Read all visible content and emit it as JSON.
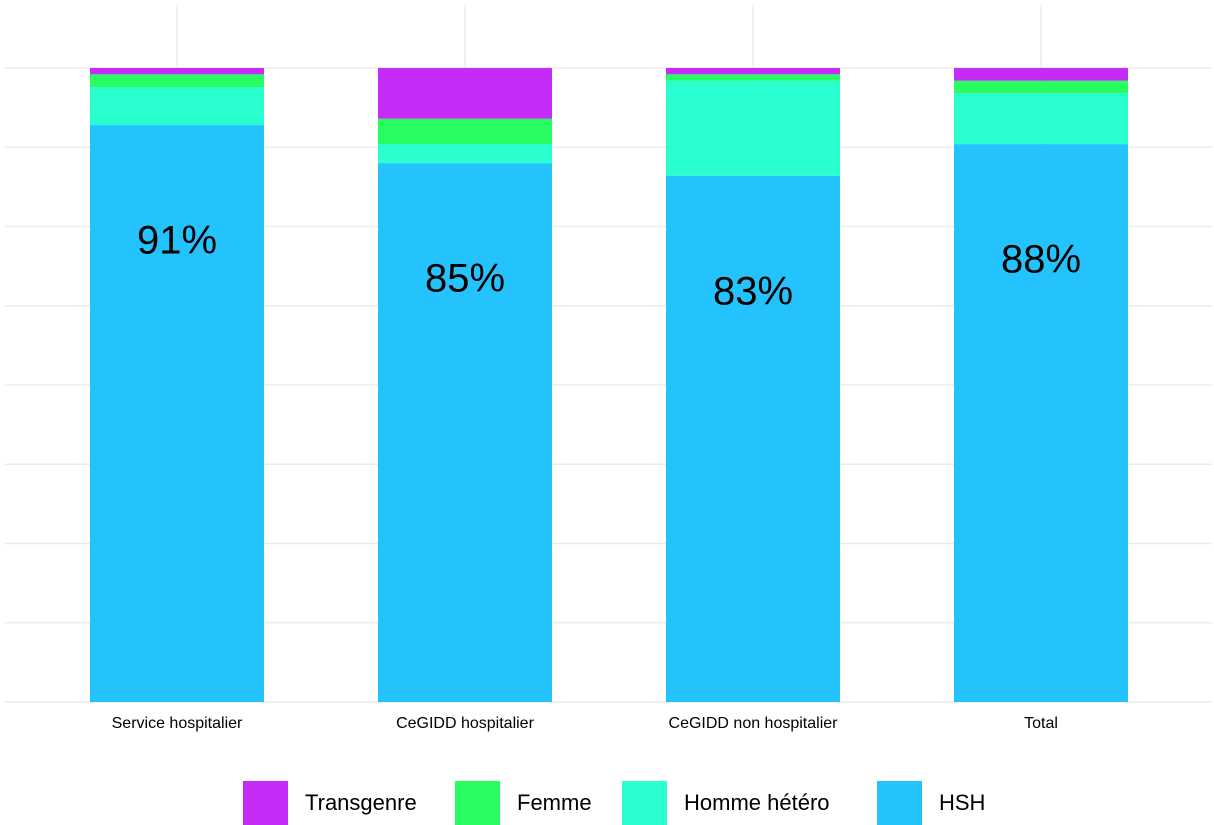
{
  "chart_data": {
    "type": "stacked-bar",
    "categories": [
      "Service hospitalier",
      "CeGIDD hospitalier",
      "CeGIDD non hospitalier",
      "Total"
    ],
    "series": [
      {
        "name": "Transgenre",
        "color": "#c62cf7",
        "values": [
          1,
          8,
          1,
          2
        ]
      },
      {
        "name": "Femme",
        "color": "#27fc60",
        "values": [
          2,
          4,
          1,
          2
        ]
      },
      {
        "name": "Homme hétéro",
        "color": "#2affcf",
        "values": [
          6,
          3,
          15,
          8
        ]
      },
      {
        "name": "HSH",
        "color": "#24c3fd",
        "values": [
          91,
          85,
          83,
          88
        ],
        "value_labels": [
          "91%",
          "85%",
          "83%",
          "88%"
        ]
      }
    ],
    "ylim": [
      0,
      100
    ],
    "yticks": [
      0,
      12.5,
      25,
      37.5,
      50,
      62.5,
      75,
      87.5,
      100
    ],
    "grid": true,
    "legend": "bottom"
  }
}
